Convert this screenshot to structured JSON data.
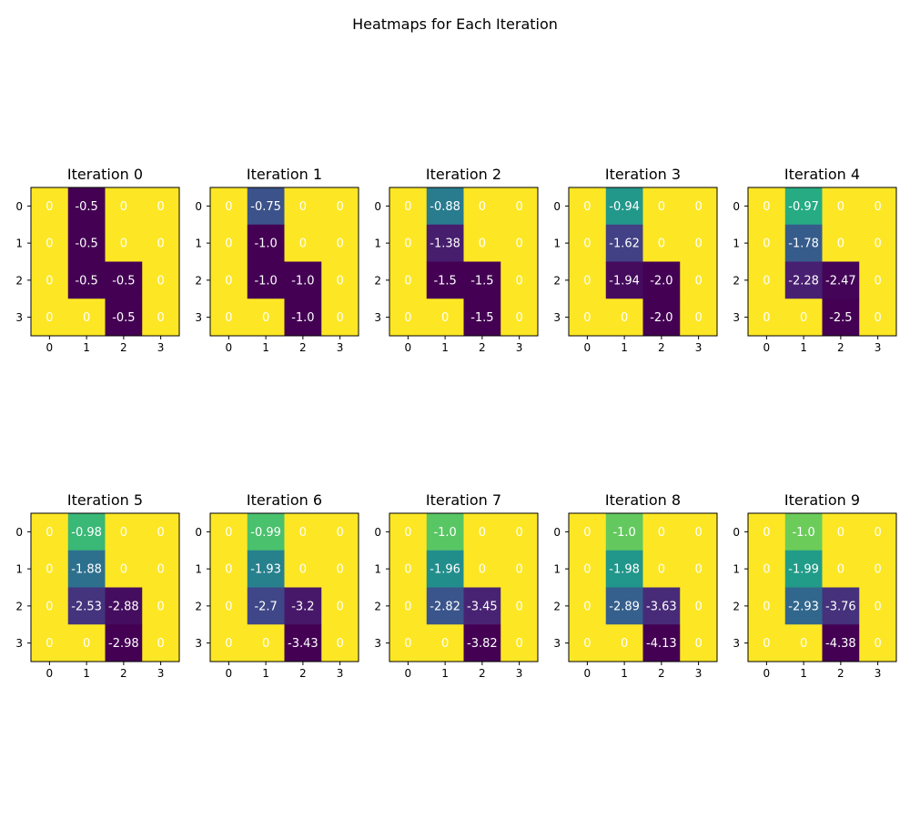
{
  "chart_data": {
    "type": "heatmap",
    "title": "Heatmaps for Each Iteration",
    "x_ticks": [
      "0",
      "1",
      "2",
      "3"
    ],
    "y_ticks": [
      "0",
      "1",
      "2",
      "3"
    ],
    "colormap": "viridis",
    "panels": [
      {
        "title": "Iteration 0",
        "labels": [
          [
            "0",
            "-0.5",
            "0",
            "0"
          ],
          [
            "0",
            "-0.5",
            "0",
            "0"
          ],
          [
            "0",
            "-0.5",
            "-0.5",
            "0"
          ],
          [
            "0",
            "0",
            "-0.5",
            "0"
          ]
        ],
        "values": [
          [
            0,
            -0.5,
            0,
            0
          ],
          [
            0,
            -0.5,
            0,
            0
          ],
          [
            0,
            -0.5,
            -0.5,
            0
          ],
          [
            0,
            0,
            -0.5,
            0
          ]
        ]
      },
      {
        "title": "Iteration 1",
        "labels": [
          [
            "0",
            "-0.75",
            "0",
            "0"
          ],
          [
            "0",
            "-1.0",
            "0",
            "0"
          ],
          [
            "0",
            "-1.0",
            "-1.0",
            "0"
          ],
          [
            "0",
            "0",
            "-1.0",
            "0"
          ]
        ],
        "values": [
          [
            0,
            -0.75,
            0,
            0
          ],
          [
            0,
            -1.0,
            0,
            0
          ],
          [
            0,
            -1.0,
            -1.0,
            0
          ],
          [
            0,
            0,
            -1.0,
            0
          ]
        ]
      },
      {
        "title": "Iteration 2",
        "labels": [
          [
            "0",
            "-0.88",
            "0",
            "0"
          ],
          [
            "0",
            "-1.38",
            "0",
            "0"
          ],
          [
            "0",
            "-1.5",
            "-1.5",
            "0"
          ],
          [
            "0",
            "0",
            "-1.5",
            "0"
          ]
        ],
        "values": [
          [
            0,
            -0.88,
            0,
            0
          ],
          [
            0,
            -1.38,
            0,
            0
          ],
          [
            0,
            -1.5,
            -1.5,
            0
          ],
          [
            0,
            0,
            -1.5,
            0
          ]
        ]
      },
      {
        "title": "Iteration 3",
        "labels": [
          [
            "0",
            "-0.94",
            "0",
            "0"
          ],
          [
            "0",
            "-1.62",
            "0",
            "0"
          ],
          [
            "0",
            "-1.94",
            "-2.0",
            "0"
          ],
          [
            "0",
            "0",
            "-2.0",
            "0"
          ]
        ],
        "values": [
          [
            0,
            -0.94,
            0,
            0
          ],
          [
            0,
            -1.62,
            0,
            0
          ],
          [
            0,
            -1.94,
            -2.0,
            0
          ],
          [
            0,
            0,
            -2.0,
            0
          ]
        ]
      },
      {
        "title": "Iteration 4",
        "labels": [
          [
            "0",
            "-0.97",
            "0",
            "0"
          ],
          [
            "0",
            "-1.78",
            "0",
            "0"
          ],
          [
            "0",
            "-2.28",
            "-2.47",
            "0"
          ],
          [
            "0",
            "0",
            "-2.5",
            "0"
          ]
        ],
        "values": [
          [
            0,
            -0.97,
            0,
            0
          ],
          [
            0,
            -1.78,
            0,
            0
          ],
          [
            0,
            -2.28,
            -2.47,
            0
          ],
          [
            0,
            0,
            -2.5,
            0
          ]
        ]
      },
      {
        "title": "Iteration 5",
        "labels": [
          [
            "0",
            "-0.98",
            "0",
            "0"
          ],
          [
            "0",
            "-1.88",
            "0",
            "0"
          ],
          [
            "0",
            "-2.53",
            "-2.88",
            "0"
          ],
          [
            "0",
            "0",
            "-2.98",
            "0"
          ]
        ],
        "values": [
          [
            0,
            -0.98,
            0,
            0
          ],
          [
            0,
            -1.88,
            0,
            0
          ],
          [
            0,
            -2.53,
            -2.88,
            0
          ],
          [
            0,
            0,
            -2.98,
            0
          ]
        ]
      },
      {
        "title": "Iteration 6",
        "labels": [
          [
            "0",
            "-0.99",
            "0",
            "0"
          ],
          [
            "0",
            "-1.93",
            "0",
            "0"
          ],
          [
            "0",
            "-2.7",
            "-3.2",
            "0"
          ],
          [
            "0",
            "0",
            "-3.43",
            "0"
          ]
        ],
        "values": [
          [
            0,
            -0.99,
            0,
            0
          ],
          [
            0,
            -1.93,
            0,
            0
          ],
          [
            0,
            -2.7,
            -3.2,
            0
          ],
          [
            0,
            0,
            -3.43,
            0
          ]
        ]
      },
      {
        "title": "Iteration 7",
        "labels": [
          [
            "0",
            "-1.0",
            "0",
            "0"
          ],
          [
            "0",
            "-1.96",
            "0",
            "0"
          ],
          [
            "0",
            "-2.82",
            "-3.45",
            "0"
          ],
          [
            "0",
            "0",
            "-3.82",
            "0"
          ]
        ],
        "values": [
          [
            0,
            -1.0,
            0,
            0
          ],
          [
            0,
            -1.96,
            0,
            0
          ],
          [
            0,
            -2.82,
            -3.45,
            0
          ],
          [
            0,
            0,
            -3.82,
            0
          ]
        ]
      },
      {
        "title": "Iteration 8",
        "labels": [
          [
            "0",
            "-1.0",
            "0",
            "0"
          ],
          [
            "0",
            "-1.98",
            "0",
            "0"
          ],
          [
            "0",
            "-2.89",
            "-3.63",
            "0"
          ],
          [
            "0",
            "0",
            "-4.13",
            "0"
          ]
        ],
        "values": [
          [
            0,
            -1.0,
            0,
            0
          ],
          [
            0,
            -1.98,
            0,
            0
          ],
          [
            0,
            -2.89,
            -3.63,
            0
          ],
          [
            0,
            0,
            -4.13,
            0
          ]
        ]
      },
      {
        "title": "Iteration 9",
        "labels": [
          [
            "0",
            "-1.0",
            "0",
            "0"
          ],
          [
            "0",
            "-1.99",
            "0",
            "0"
          ],
          [
            "0",
            "-2.93",
            "-3.76",
            "0"
          ],
          [
            "0",
            "0",
            "-4.38",
            "0"
          ]
        ],
        "values": [
          [
            0,
            -1.0,
            0,
            0
          ],
          [
            0,
            -1.99,
            0,
            0
          ],
          [
            0,
            -2.93,
            -3.76,
            0
          ],
          [
            0,
            0,
            -4.38,
            0
          ]
        ]
      }
    ]
  }
}
